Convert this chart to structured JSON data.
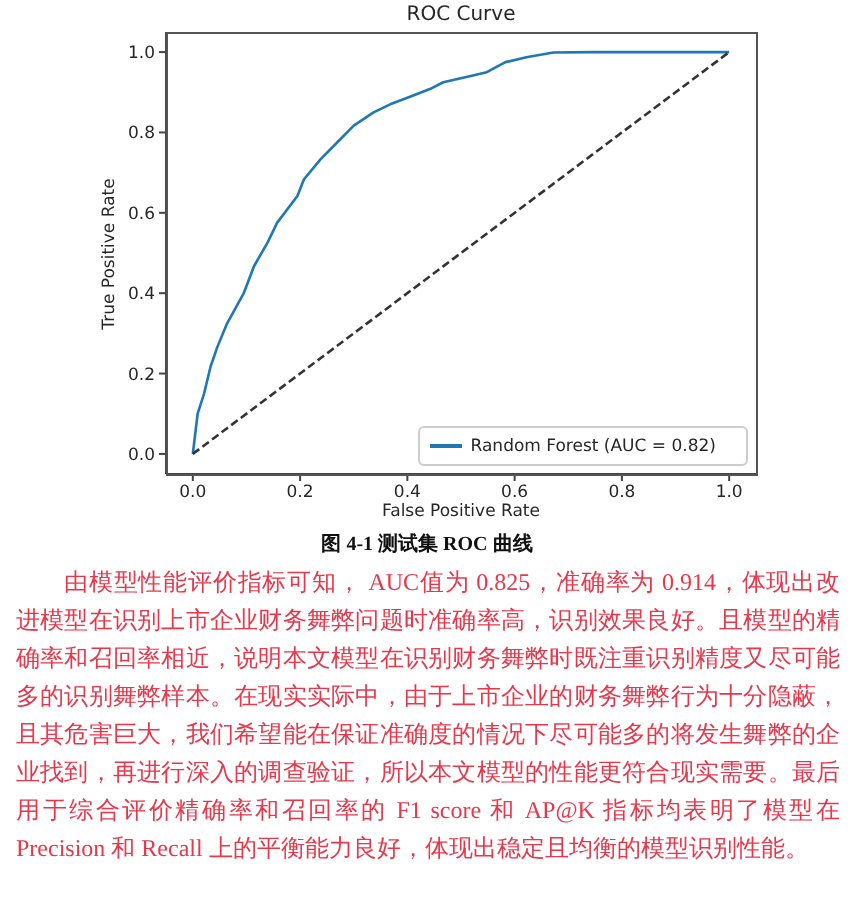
{
  "chart_data": {
    "type": "line",
    "title": "ROC Curve",
    "xlabel": "False Positive Rate",
    "ylabel": "True Positive Rate",
    "xlim": [
      -0.05,
      1.05
    ],
    "ylim": [
      -0.05,
      1.05
    ],
    "xticks": [
      {
        "value": 0,
        "label": "0.0"
      },
      0.2,
      0.4,
      0.6,
      0.8,
      {
        "value": 1,
        "label": "1.0"
      }
    ],
    "yticks": [
      {
        "value": 0,
        "label": "0.0"
      },
      0.2,
      0.4,
      0.6,
      0.8,
      {
        "value": 1,
        "label": "1.0"
      }
    ],
    "legend": "bottom right",
    "series": [
      {
        "name": "Random Forest (AUC = 0.82)",
        "color": "#1f77b4",
        "x": [
          0,
          0.009,
          0.021,
          0.033,
          0.046,
          0.064,
          0.095,
          0.114,
          0.139,
          0.157,
          0.195,
          0.207,
          0.238,
          0.269,
          0.3,
          0.337,
          0.368,
          0.411,
          0.442,
          0.467,
          0.51,
          0.548,
          0.583,
          0.622,
          0.672,
          0.746,
          1.0
        ],
        "values": [
          0,
          0.1,
          0.15,
          0.217,
          0.267,
          0.325,
          0.4,
          0.467,
          0.525,
          0.575,
          0.642,
          0.683,
          0.733,
          0.775,
          0.817,
          0.85,
          0.87,
          0.892,
          0.908,
          0.925,
          0.938,
          0.95,
          0.975,
          0.987,
          0.999,
          1.0,
          1.0
        ]
      },
      {
        "color": "#333333",
        "line_style": "dashed",
        "x": [
          0,
          1
        ],
        "values": [
          0,
          1
        ]
      }
    ],
    "annotations": [
      "图 4-1 测试集 ROC 曲线",
      "由模型性能评价指标可知， AUC值为 0.825，准确率为 0.914，体现出改进模型在识别上市企业财务舞弊问题时准确率高，识别效果良好。且模型的精确率和召回率相近，说明本文模型在识别财务舞弊时既注重识别精度又尽可能多的识别舞弊样本。在现实实际中，由于上市企业的财务舞弊行为十分隐蔽，且其危害巨大，我们希望能在保证准确度的情况下尽可能多的将发生舞弊的企业找到，再进行深入的调查验证，所以本文模型的性能更符合现实需要。最后用于综合评价精确率和召回率的 F1 score 和 AP@K 指标均表明了模型在 Precision 和 Recall 上的平衡能力良好，体现出稳定且均衡的模型识别性能。"
    ]
  }
}
